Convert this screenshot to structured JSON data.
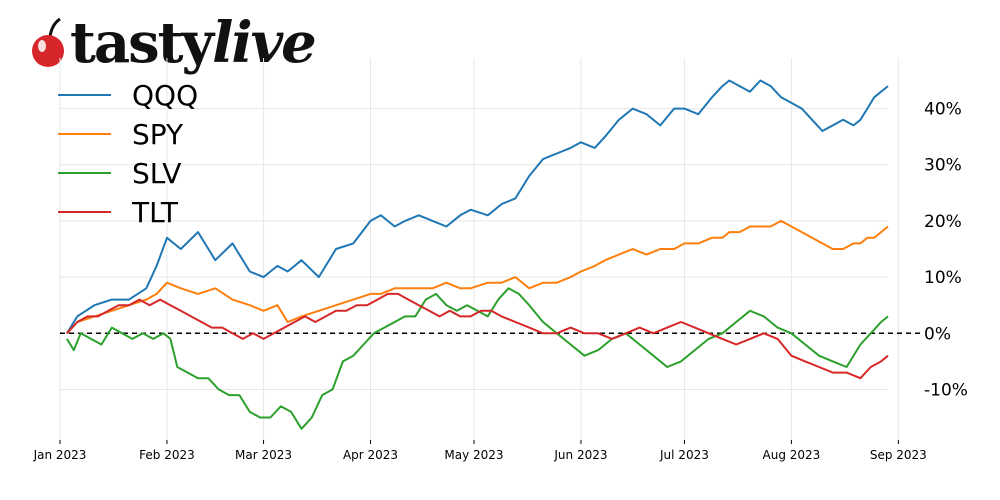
{
  "brand": {
    "name_main": "tasty",
    "name_accent": "live",
    "logo_icon": "cherry-icon",
    "cherry_color": "#d7262b"
  },
  "chart_data": {
    "type": "line",
    "title": "",
    "xlabel": "",
    "ylabel": "",
    "ylim": [
      -19,
      49
    ],
    "yticks": [
      -10,
      0,
      10,
      20,
      30,
      40
    ],
    "ytick_labels": [
      "-10%",
      "0%",
      "10%",
      "20%",
      "30%",
      "40%"
    ],
    "xlim": [
      0,
      240
    ],
    "xticks": [
      0,
      31,
      59,
      90,
      120,
      151,
      181,
      212,
      243
    ],
    "xtick_labels": [
      "Jan 2023",
      "Feb 2023",
      "Mar 2023",
      "Apr 2023",
      "May 2023",
      "Jun 2023",
      "Jul 2023",
      "Aug 2023",
      "Sep 2023"
    ],
    "zero_line": true,
    "grid": true,
    "legend": "top-left",
    "series": [
      {
        "name": "QQQ",
        "color": "#1f77b4",
        "x": [
          2,
          5,
          10,
          15,
          20,
          25,
          28,
          31,
          35,
          40,
          45,
          50,
          55,
          59,
          63,
          66,
          70,
          75,
          80,
          85,
          90,
          93,
          97,
          100,
          104,
          108,
          112,
          116,
          119,
          124,
          128,
          132,
          136,
          140,
          144,
          148,
          151,
          155,
          158,
          162,
          166,
          170,
          174,
          178,
          181,
          185,
          189,
          192,
          194,
          197,
          200,
          203,
          206,
          209,
          212,
          215,
          218,
          221,
          224,
          227,
          230,
          232,
          234,
          236,
          238,
          240
        ],
        "y": [
          0,
          3,
          5,
          6,
          6,
          8,
          12,
          17,
          15,
          18,
          13,
          16,
          11,
          10,
          12,
          11,
          13,
          10,
          15,
          16,
          20,
          21,
          19,
          20,
          21,
          20,
          19,
          21,
          22,
          21,
          23,
          24,
          28,
          31,
          32,
          33,
          34,
          33,
          35,
          38,
          40,
          39,
          37,
          40,
          40,
          39,
          42,
          44,
          45,
          44,
          43,
          45,
          44,
          42,
          41,
          40,
          38,
          36,
          37,
          38,
          37,
          38,
          40,
          42,
          43,
          44
        ]
      },
      {
        "name": "SPY",
        "color": "#ff7f0e",
        "x": [
          2,
          5,
          10,
          15,
          20,
          25,
          28,
          31,
          35,
          40,
          45,
          50,
          55,
          59,
          63,
          66,
          70,
          75,
          80,
          85,
          90,
          93,
          97,
          100,
          104,
          108,
          112,
          116,
          119,
          124,
          128,
          132,
          136,
          140,
          144,
          148,
          151,
          155,
          158,
          162,
          166,
          170,
          174,
          178,
          181,
          185,
          189,
          192,
          194,
          197,
          200,
          203,
          206,
          209,
          212,
          215,
          218,
          221,
          224,
          227,
          230,
          232,
          234,
          236,
          238,
          240
        ],
        "y": [
          0,
          2,
          3,
          4,
          5,
          6,
          7,
          9,
          8,
          7,
          8,
          6,
          5,
          4,
          5,
          2,
          3,
          4,
          5,
          6,
          7,
          7,
          8,
          8,
          8,
          8,
          9,
          8,
          8,
          9,
          9,
          10,
          8,
          9,
          9,
          10,
          11,
          12,
          13,
          14,
          15,
          14,
          15,
          15,
          16,
          16,
          17,
          17,
          18,
          18,
          19,
          19,
          19,
          20,
          19,
          18,
          17,
          16,
          15,
          15,
          16,
          16,
          17,
          17,
          18,
          19
        ]
      },
      {
        "name": "SLV",
        "color": "#2ca02c",
        "x": [
          2,
          4,
          6,
          9,
          12,
          15,
          18,
          21,
          24,
          27,
          30,
          32,
          34,
          37,
          40,
          43,
          46,
          49,
          52,
          55,
          58,
          61,
          64,
          67,
          70,
          73,
          76,
          79,
          82,
          85,
          88,
          91,
          94,
          97,
          100,
          103,
          106,
          109,
          112,
          115,
          118,
          121,
          124,
          127,
          130,
          133,
          136,
          140,
          144,
          148,
          152,
          156,
          160,
          164,
          168,
          172,
          176,
          180,
          184,
          188,
          192,
          196,
          200,
          204,
          208,
          212,
          216,
          220,
          224,
          228,
          232,
          235,
          238,
          240
        ],
        "y": [
          -1,
          -3,
          0,
          -1,
          -2,
          1,
          0,
          -1,
          0,
          -1,
          0,
          -1,
          -6,
          -7,
          -8,
          -8,
          -10,
          -11,
          -11,
          -14,
          -15,
          -15,
          -13,
          -14,
          -17,
          -15,
          -11,
          -10,
          -5,
          -4,
          -2,
          0,
          1,
          2,
          3,
          3,
          6,
          7,
          5,
          4,
          5,
          4,
          3,
          6,
          8,
          7,
          5,
          2,
          0,
          -2,
          -4,
          -3,
          -1,
          0,
          -2,
          -4,
          -6,
          -5,
          -3,
          -1,
          0,
          2,
          4,
          3,
          1,
          0,
          -2,
          -4,
          -5,
          -6,
          -2,
          0,
          2,
          3
        ]
      },
      {
        "name": "TLT",
        "color": "#d62728",
        "x": [
          2,
          5,
          8,
          11,
          14,
          17,
          20,
          23,
          26,
          29,
          32,
          35,
          38,
          41,
          44,
          47,
          50,
          53,
          56,
          59,
          62,
          65,
          68,
          71,
          74,
          77,
          80,
          83,
          86,
          89,
          92,
          95,
          98,
          101,
          104,
          107,
          110,
          113,
          116,
          119,
          122,
          125,
          128,
          132,
          136,
          140,
          144,
          148,
          152,
          156,
          160,
          164,
          168,
          172,
          176,
          180,
          184,
          188,
          192,
          196,
          200,
          204,
          208,
          212,
          216,
          220,
          224,
          228,
          232,
          235,
          238,
          240
        ],
        "y": [
          0,
          2,
          3,
          3,
          4,
          5,
          5,
          6,
          5,
          6,
          5,
          4,
          3,
          2,
          1,
          1,
          0,
          -1,
          0,
          -1,
          0,
          1,
          2,
          3,
          2,
          3,
          4,
          4,
          5,
          5,
          6,
          7,
          7,
          6,
          5,
          4,
          3,
          4,
          3,
          3,
          4,
          4,
          3,
          2,
          1,
          0,
          0,
          1,
          0,
          0,
          -1,
          0,
          1,
          0,
          1,
          2,
          1,
          0,
          -1,
          -2,
          -1,
          0,
          -1,
          -4,
          -5,
          -6,
          -7,
          -7,
          -8,
          -6,
          -5,
          -4
        ]
      }
    ]
  }
}
